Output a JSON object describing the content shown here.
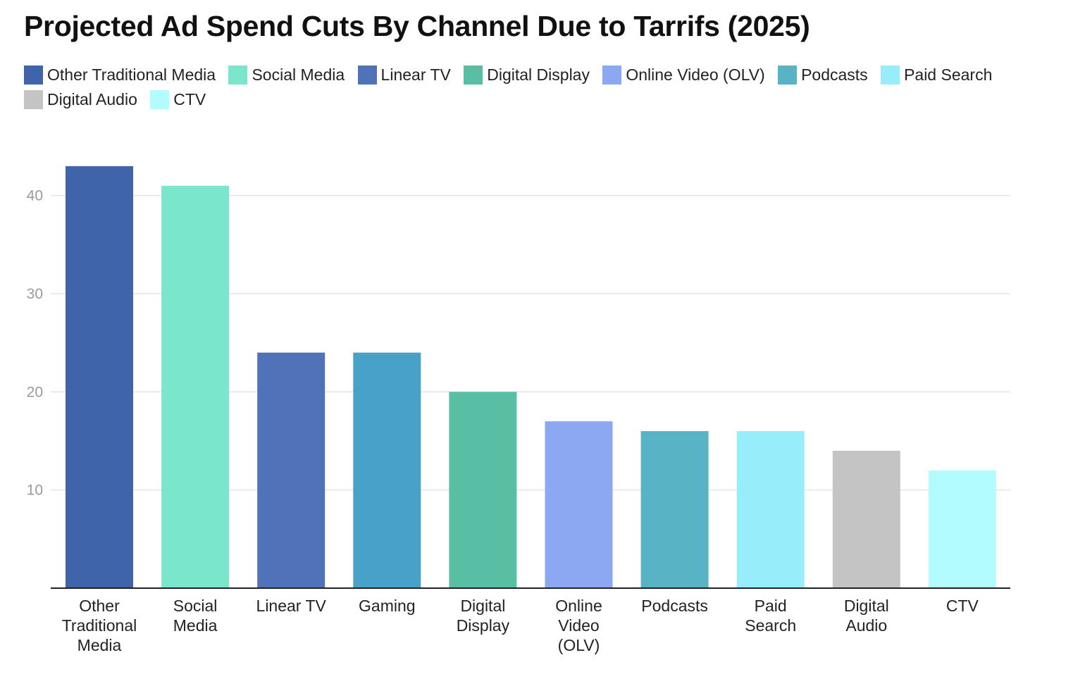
{
  "chart_data": {
    "type": "bar",
    "title": "Projected Ad Spend Cuts By Channel Due to Tarrifs (2025)",
    "xlabel": "",
    "ylabel": "",
    "ylim": [
      0,
      45
    ],
    "yticks": [
      10,
      20,
      30,
      40
    ],
    "grid": true,
    "legend_position": "top",
    "categories": [
      "Other Traditional Media",
      "Social Media",
      "Linear TV",
      "Gaming",
      "Digital Display",
      "Online Video (OLV)",
      "Podcasts",
      "Paid Search",
      "Digital Audio",
      "CTV"
    ],
    "category_lines": [
      [
        "Other",
        "Traditional",
        "Media"
      ],
      [
        "Social",
        "Media"
      ],
      [
        "Linear TV"
      ],
      [
        "Gaming"
      ],
      [
        "Digital",
        "Display"
      ],
      [
        "Online",
        "Video",
        "(OLV)"
      ],
      [
        "Podcasts"
      ],
      [
        "Paid",
        "Search"
      ],
      [
        "Digital",
        "Audio"
      ],
      [
        "CTV"
      ]
    ],
    "values": [
      43,
      41,
      24,
      24,
      20,
      17,
      16,
      16,
      14,
      12
    ],
    "colors": [
      "#3f64aa",
      "#7ae6cb",
      "#5072b8",
      "#47a1c9",
      "#58bfa5",
      "#8da8f2",
      "#58b3c4",
      "#97eefa",
      "#c4c4c4",
      "#b2fcff"
    ],
    "legend": [
      {
        "label": "Other Traditional Media",
        "color": "#3f64aa"
      },
      {
        "label": "Social Media",
        "color": "#7ae6cb"
      },
      {
        "label": "Linear TV",
        "color": "#5072b8"
      },
      {
        "label": "Digital Display",
        "color": "#58bfa5"
      },
      {
        "label": "Online Video (OLV)",
        "color": "#8da8f2"
      },
      {
        "label": "Podcasts",
        "color": "#58b3c4"
      },
      {
        "label": "Paid Search",
        "color": "#97eefa"
      },
      {
        "label": "Digital Audio",
        "color": "#c4c4c4"
      },
      {
        "label": "CTV",
        "color": "#b2fcff"
      }
    ]
  }
}
